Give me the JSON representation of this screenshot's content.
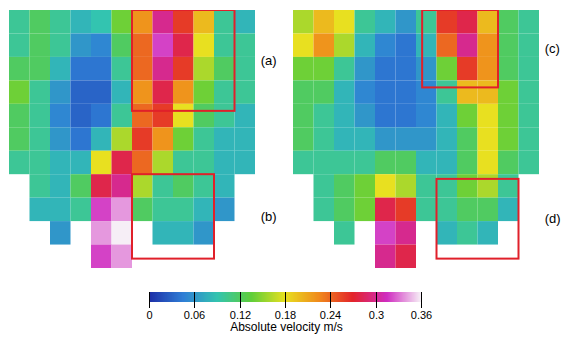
{
  "chart_data": {
    "type": "heatmap",
    "tick_labels": false,
    "panels": [
      {
        "annotations": [
          "(a)",
          "(b)"
        ],
        "cells": [
          [
            0.1,
            0.12,
            0.1,
            0.08,
            0.09,
            0.14,
            0.22,
            0.3,
            0.26,
            0.2,
            0.1,
            0.08
          ],
          [
            0.1,
            0.12,
            0.1,
            0.06,
            0.05,
            0.12,
            0.24,
            0.32,
            0.28,
            0.18,
            0.1,
            0.1
          ],
          [
            0.12,
            0.12,
            0.08,
            0.04,
            0.04,
            0.1,
            0.24,
            0.3,
            0.26,
            0.16,
            0.12,
            0.1
          ],
          [
            0.14,
            0.1,
            0.06,
            0.03,
            0.03,
            0.08,
            0.22,
            0.28,
            0.22,
            0.14,
            0.1,
            0.1
          ],
          [
            0.12,
            0.1,
            0.05,
            0.03,
            0.04,
            0.1,
            0.24,
            0.26,
            0.18,
            0.12,
            0.1,
            0.08
          ],
          [
            0.12,
            0.1,
            0.06,
            0.04,
            0.08,
            0.16,
            0.26,
            0.22,
            0.14,
            0.1,
            0.08,
            0.08
          ],
          [
            0.1,
            0.1,
            0.08,
            0.08,
            0.18,
            0.28,
            0.24,
            0.16,
            0.1,
            0.1,
            0.08,
            0.08
          ],
          [
            null,
            0.1,
            0.08,
            0.12,
            0.28,
            0.3,
            0.16,
            0.1,
            0.12,
            0.1,
            0.08,
            null
          ],
          [
            null,
            0.08,
            0.08,
            0.1,
            0.32,
            0.34,
            0.12,
            0.1,
            0.1,
            0.08,
            0.06,
            null
          ],
          [
            null,
            null,
            0.06,
            null,
            0.34,
            0.36,
            null,
            0.08,
            0.08,
            0.06,
            null,
            null
          ],
          [
            null,
            null,
            null,
            null,
            0.32,
            0.34,
            null,
            null,
            null,
            null,
            null,
            null
          ]
        ]
      },
      {
        "annotations": [
          "(c)",
          "(d)"
        ],
        "cells": [
          [
            0.16,
            0.2,
            0.18,
            0.1,
            0.08,
            0.06,
            0.1,
            0.26,
            0.28,
            0.2,
            0.12,
            0.1
          ],
          [
            0.18,
            0.22,
            0.16,
            0.08,
            0.05,
            0.04,
            0.08,
            0.24,
            0.3,
            0.22,
            0.12,
            0.1
          ],
          [
            0.14,
            0.14,
            0.1,
            0.06,
            0.04,
            0.04,
            0.06,
            0.14,
            0.26,
            0.22,
            0.12,
            0.1
          ],
          [
            0.12,
            0.12,
            0.08,
            0.05,
            0.04,
            0.04,
            0.05,
            0.1,
            0.2,
            0.2,
            0.14,
            0.1
          ],
          [
            0.12,
            0.1,
            0.08,
            0.06,
            0.04,
            0.04,
            0.05,
            0.08,
            0.14,
            0.18,
            0.14,
            0.1
          ],
          [
            0.12,
            0.1,
            0.08,
            0.08,
            0.06,
            0.06,
            0.06,
            0.08,
            0.12,
            0.18,
            0.14,
            0.1
          ],
          [
            0.1,
            0.1,
            0.1,
            0.1,
            0.12,
            0.12,
            0.08,
            0.08,
            0.12,
            0.18,
            0.12,
            0.1
          ],
          [
            null,
            0.1,
            0.12,
            0.14,
            0.18,
            0.16,
            0.1,
            0.1,
            0.14,
            0.16,
            0.1,
            null
          ],
          [
            null,
            0.1,
            0.12,
            0.14,
            0.28,
            0.26,
            0.1,
            0.1,
            0.12,
            0.12,
            0.08,
            null
          ],
          [
            null,
            null,
            0.1,
            null,
            0.32,
            0.3,
            null,
            0.08,
            0.1,
            0.08,
            null,
            null
          ],
          [
            null,
            null,
            null,
            null,
            0.3,
            0.28,
            null,
            null,
            null,
            null,
            null,
            null
          ]
        ]
      }
    ],
    "colorbar": {
      "label": "Absolute velocity m/s",
      "range": [
        0,
        0.36
      ],
      "ticks": [
        0,
        0.06,
        0.12,
        0.18,
        0.24,
        0.3,
        0.36
      ]
    }
  }
}
